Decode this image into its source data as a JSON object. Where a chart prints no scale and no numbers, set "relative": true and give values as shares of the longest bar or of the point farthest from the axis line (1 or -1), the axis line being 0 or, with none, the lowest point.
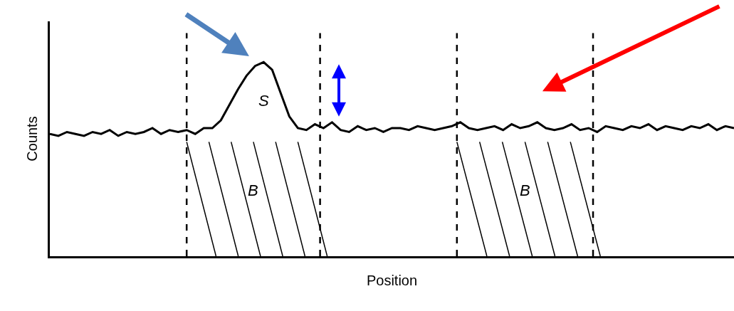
{
  "chart_data": {
    "type": "line",
    "relative": true,
    "xlabel": "Position",
    "ylabel": "Counts",
    "tick_labels": false,
    "marker": "none",
    "line_style": "solid",
    "categories": [
      null,
      null,
      null,
      null,
      null,
      null,
      null,
      null,
      null,
      null,
      null,
      null,
      null,
      null,
      null,
      null,
      null,
      null,
      null,
      null,
      null,
      null,
      null,
      null,
      null,
      null,
      null,
      null,
      null,
      null,
      null,
      null,
      null,
      null,
      null,
      null,
      null,
      null,
      null,
      null,
      null,
      null,
      null,
      null,
      null,
      null,
      null,
      null,
      null,
      null,
      null,
      null,
      null,
      null,
      null,
      null,
      null,
      null,
      null,
      null,
      null,
      null,
      null,
      null,
      null,
      null,
      null,
      null,
      null,
      null,
      null,
      null,
      null,
      null,
      null,
      null,
      null,
      null,
      null,
      null,
      null
    ],
    "series": [
      {
        "color": "#000000",
        "values": [
          0.63,
          0.62,
          0.64,
          0.63,
          0.62,
          0.64,
          0.63,
          0.65,
          0.62,
          0.64,
          0.63,
          0.64,
          0.66,
          0.63,
          0.65,
          0.64,
          0.65,
          0.63,
          0.66,
          0.66,
          0.7,
          0.78,
          0.86,
          0.93,
          0.98,
          1.0,
          0.96,
          0.84,
          0.72,
          0.66,
          0.65,
          0.68,
          0.66,
          0.69,
          0.65,
          0.64,
          0.67,
          0.65,
          0.66,
          0.64,
          0.66,
          0.66,
          0.65,
          0.67,
          0.66,
          0.65,
          0.66,
          0.67,
          0.69,
          0.66,
          0.65,
          0.66,
          0.67,
          0.65,
          0.68,
          0.66,
          0.67,
          0.69,
          0.66,
          0.65,
          0.66,
          0.68,
          0.65,
          0.66,
          0.64,
          0.67,
          0.66,
          0.65,
          0.67,
          0.66,
          0.68,
          0.65,
          0.67,
          0.66,
          0.65,
          0.67,
          0.66,
          0.68,
          0.65,
          0.67,
          0.66
        ]
      }
    ],
    "annotations": [
      "S",
      "B",
      "B"
    ]
  }
}
